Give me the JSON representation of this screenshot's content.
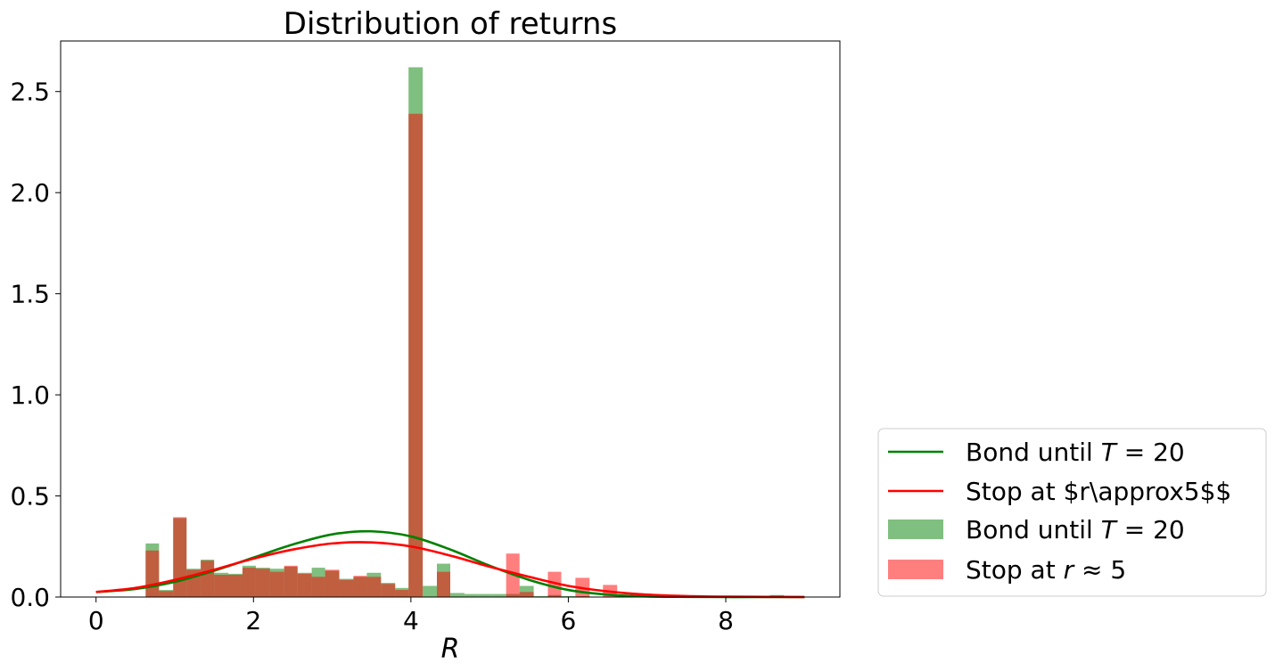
{
  "chart_data": {
    "type": "histogram",
    "title": "Distribution of returns",
    "xlabel": "R",
    "ylabel": "",
    "xlim": [
      -0.45,
      9.45
    ],
    "ylim": [
      0,
      2.75
    ],
    "xticks": [
      0,
      2,
      4,
      6,
      8
    ],
    "xtick_labels": [
      "0",
      "2",
      "4",
      "6",
      "8"
    ],
    "yticks": [
      0.0,
      0.5,
      1.0,
      1.5,
      2.0,
      2.5
    ],
    "ytick_labels": [
      "0.0",
      "0.5",
      "1.0",
      "1.5",
      "2.0",
      "2.5"
    ],
    "grid": false,
    "legend_position": "outside-right-bottom",
    "histograms": [
      {
        "name": "Bond until T = 20",
        "name_math": {
          "prefix": "Bond until ",
          "var": "T",
          "rel": " = ",
          "num": "20"
        },
        "color": "#008000",
        "opacity": 0.5,
        "bins": [
          {
            "x0": 0.63,
            "x1": 0.8,
            "h": 0.265
          },
          {
            "x0": 0.8,
            "x1": 0.98,
            "h": 0.035
          },
          {
            "x0": 0.98,
            "x1": 1.15,
            "h": 0.39
          },
          {
            "x0": 1.15,
            "x1": 1.33,
            "h": 0.14
          },
          {
            "x0": 1.33,
            "x1": 1.5,
            "h": 0.185
          },
          {
            "x0": 1.5,
            "x1": 1.68,
            "h": 0.12
          },
          {
            "x0": 1.68,
            "x1": 1.86,
            "h": 0.115
          },
          {
            "x0": 1.86,
            "x1": 2.03,
            "h": 0.155
          },
          {
            "x0": 2.03,
            "x1": 2.21,
            "h": 0.145
          },
          {
            "x0": 2.21,
            "x1": 2.39,
            "h": 0.14
          },
          {
            "x0": 2.39,
            "x1": 2.56,
            "h": 0.15
          },
          {
            "x0": 2.56,
            "x1": 2.74,
            "h": 0.12
          },
          {
            "x0": 2.74,
            "x1": 2.91,
            "h": 0.145
          },
          {
            "x0": 2.91,
            "x1": 3.09,
            "h": 0.13
          },
          {
            "x0": 3.09,
            "x1": 3.27,
            "h": 0.09
          },
          {
            "x0": 3.27,
            "x1": 3.44,
            "h": 0.1
          },
          {
            "x0": 3.44,
            "x1": 3.62,
            "h": 0.12
          },
          {
            "x0": 3.62,
            "x1": 3.8,
            "h": 0.07
          },
          {
            "x0": 3.8,
            "x1": 3.97,
            "h": 0.045
          },
          {
            "x0": 3.97,
            "x1": 4.15,
            "h": 2.62
          },
          {
            "x0": 4.15,
            "x1": 4.33,
            "h": 0.055
          },
          {
            "x0": 4.33,
            "x1": 4.5,
            "h": 0.165
          },
          {
            "x0": 4.5,
            "x1": 4.68,
            "h": 0.02
          },
          {
            "x0": 4.68,
            "x1": 4.86,
            "h": 0.015
          },
          {
            "x0": 4.86,
            "x1": 5.03,
            "h": 0.015
          },
          {
            "x0": 5.03,
            "x1": 5.21,
            "h": 0.015
          },
          {
            "x0": 5.21,
            "x1": 5.38,
            "h": 0.015
          },
          {
            "x0": 5.38,
            "x1": 5.56,
            "h": 0.055
          },
          {
            "x0": 5.56,
            "x1": 5.74,
            "h": 0.005
          },
          {
            "x0": 5.74,
            "x1": 5.91,
            "h": 0.01
          },
          {
            "x0": 5.91,
            "x1": 6.09,
            "h": 0.005
          },
          {
            "x0": 6.09,
            "x1": 6.27,
            "h": 0.005
          },
          {
            "x0": 8.56,
            "x1": 8.74,
            "h": 0.01
          }
        ]
      },
      {
        "name": "Stop at r ≈ 5",
        "name_math": {
          "prefix": "Stop at ",
          "var": "r",
          "rel": " ≈ ",
          "num": "5"
        },
        "color": "#ff0000",
        "opacity": 0.5,
        "bins": [
          {
            "x0": 0.63,
            "x1": 0.8,
            "h": 0.23
          },
          {
            "x0": 0.8,
            "x1": 0.98,
            "h": 0.03
          },
          {
            "x0": 0.98,
            "x1": 1.15,
            "h": 0.395
          },
          {
            "x0": 1.15,
            "x1": 1.33,
            "h": 0.135
          },
          {
            "x0": 1.33,
            "x1": 1.5,
            "h": 0.18
          },
          {
            "x0": 1.5,
            "x1": 1.68,
            "h": 0.11
          },
          {
            "x0": 1.68,
            "x1": 1.86,
            "h": 0.11
          },
          {
            "x0": 1.86,
            "x1": 2.03,
            "h": 0.145
          },
          {
            "x0": 2.03,
            "x1": 2.21,
            "h": 0.14
          },
          {
            "x0": 2.21,
            "x1": 2.39,
            "h": 0.125
          },
          {
            "x0": 2.39,
            "x1": 2.56,
            "h": 0.155
          },
          {
            "x0": 2.56,
            "x1": 2.74,
            "h": 0.115
          },
          {
            "x0": 2.74,
            "x1": 2.91,
            "h": 0.1
          },
          {
            "x0": 2.91,
            "x1": 3.09,
            "h": 0.135
          },
          {
            "x0": 3.09,
            "x1": 3.27,
            "h": 0.085
          },
          {
            "x0": 3.27,
            "x1": 3.44,
            "h": 0.105
          },
          {
            "x0": 3.44,
            "x1": 3.62,
            "h": 0.1
          },
          {
            "x0": 3.62,
            "x1": 3.8,
            "h": 0.065
          },
          {
            "x0": 3.8,
            "x1": 3.97,
            "h": 0.035
          },
          {
            "x0": 3.97,
            "x1": 4.15,
            "h": 2.39
          },
          {
            "x0": 4.15,
            "x1": 4.33,
            "h": 0.0
          },
          {
            "x0": 4.33,
            "x1": 4.5,
            "h": 0.125
          },
          {
            "x0": 5.21,
            "x1": 5.38,
            "h": 0.215
          },
          {
            "x0": 5.38,
            "x1": 5.56,
            "h": 0.025
          },
          {
            "x0": 5.74,
            "x1": 5.91,
            "h": 0.125
          },
          {
            "x0": 6.09,
            "x1": 6.27,
            "h": 0.095
          },
          {
            "x0": 6.44,
            "x1": 6.62,
            "h": 0.06
          }
        ]
      }
    ],
    "series": [
      {
        "name": "Bond until T = 20",
        "name_math": {
          "prefix": "Bond until ",
          "var": "T",
          "rel": " = ",
          "num": "20"
        },
        "color": "#008000",
        "type": "line",
        "x": [
          0,
          0.5,
          1,
          1.5,
          2,
          2.5,
          3,
          3.5,
          4,
          4.5,
          5,
          5.5,
          6,
          6.5,
          7,
          7.5,
          8,
          8.5,
          9
        ],
        "y": [
          0.025,
          0.04,
          0.075,
          0.13,
          0.195,
          0.26,
          0.31,
          0.325,
          0.3,
          0.235,
          0.155,
          0.085,
          0.035,
          0.012,
          0.003,
          0.001,
          0.0,
          0.0,
          0.0
        ]
      },
      {
        "name": "Stop at $r\\approx5$$",
        "color": "#ff0000",
        "type": "line",
        "x": [
          0,
          0.5,
          1,
          1.5,
          2,
          2.5,
          3,
          3.5,
          4,
          4.5,
          5,
          5.5,
          6,
          6.5,
          7,
          7.5,
          8,
          8.5,
          9
        ],
        "y": [
          0.025,
          0.045,
          0.085,
          0.135,
          0.19,
          0.235,
          0.265,
          0.27,
          0.25,
          0.205,
          0.15,
          0.1,
          0.055,
          0.028,
          0.012,
          0.005,
          0.002,
          0.001,
          0.0
        ]
      }
    ]
  }
}
